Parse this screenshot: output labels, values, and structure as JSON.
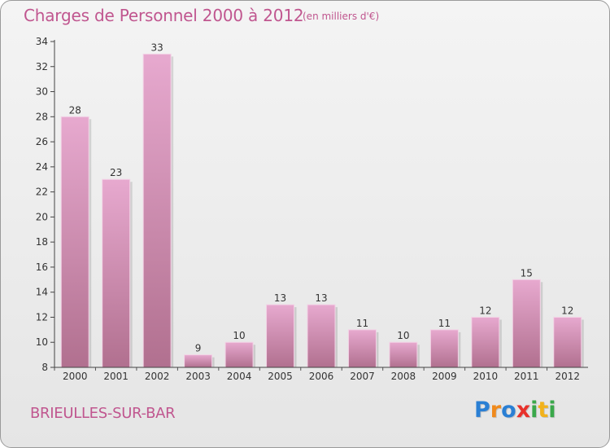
{
  "title": "Charges de Personnel 2000 à 2012",
  "subtitle": "(en milliers d'€)",
  "place": "BRIEULLES-SUR-BAR",
  "logo": {
    "text": "Proxiti",
    "letters": [
      {
        "ch": "P",
        "color": "#2a7fd4"
      },
      {
        "ch": "r",
        "color": "#f08a1c"
      },
      {
        "ch": "o",
        "color": "#2a7fd4"
      },
      {
        "ch": "x",
        "color": "#e8312b"
      },
      {
        "ch": "i",
        "color": "#3aa84a"
      },
      {
        "ch": "t",
        "color": "#f2b21b"
      },
      {
        "ch": "i",
        "color": "#3aa84a"
      }
    ]
  },
  "colors": {
    "accent": "#c0568f",
    "bar_top": "#e7a9cf",
    "bar_bottom": "#b1708f"
  },
  "chart_data": {
    "type": "bar",
    "categories": [
      "2000",
      "2001",
      "2002",
      "2003",
      "2004",
      "2005",
      "2006",
      "2007",
      "2008",
      "2009",
      "2010",
      "2011",
      "2012"
    ],
    "values": [
      28,
      23,
      33,
      9,
      10,
      13,
      13,
      11,
      10,
      11,
      12,
      15,
      12
    ],
    "title": "Charges de Personnel 2000 à 2012",
    "subtitle": "(en milliers d'€)",
    "xlabel": "",
    "ylabel": "",
    "ylim": [
      8,
      34
    ],
    "yticks": [
      8,
      10,
      12,
      14,
      16,
      18,
      20,
      22,
      24,
      26,
      28,
      30,
      32,
      34
    ],
    "grid": false,
    "data_labels": true
  }
}
